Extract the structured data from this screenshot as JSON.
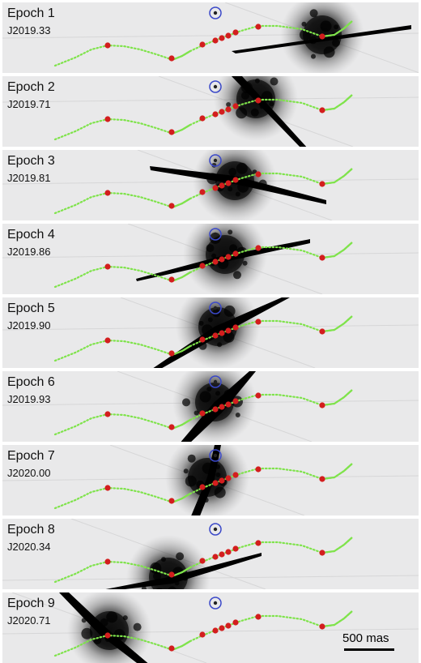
{
  "panels": [
    {
      "epoch": "Epoch 1",
      "date": "J2019.33"
    },
    {
      "epoch": "Epoch 2",
      "date": "J2019.71"
    },
    {
      "epoch": "Epoch 3",
      "date": "J2019.81"
    },
    {
      "epoch": "Epoch 4",
      "date": "J2019.86"
    },
    {
      "epoch": "Epoch 5",
      "date": "J2019.90"
    },
    {
      "epoch": "Epoch 6",
      "date": "J2019.93"
    },
    {
      "epoch": "Epoch 7",
      "date": "J2020.00"
    },
    {
      "epoch": "Epoch 8",
      "date": "J2020.34"
    },
    {
      "epoch": "Epoch 9",
      "date": "J2020.71"
    }
  ],
  "scale_bar": {
    "label": "500 mas"
  },
  "colors": {
    "background": "#e9e9ea",
    "orbit_path": "#7fe34b",
    "epoch_marker": "#d31e1e",
    "companion_circle": "#3a48c8",
    "occulting_mask": "#000000"
  }
}
